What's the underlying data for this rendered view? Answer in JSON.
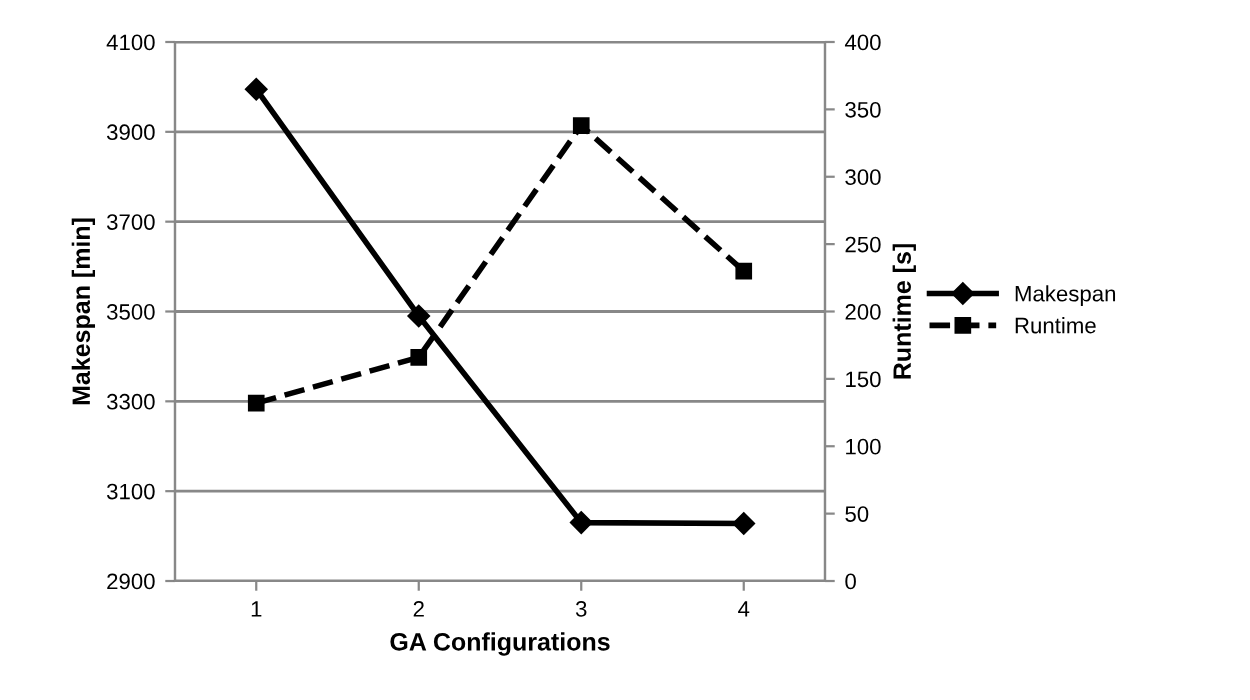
{
  "chart_data": {
    "type": "line",
    "xlabel": "GA Configurations",
    "ylabel": "Makespan [min]",
    "y2label": "Runtime [s]",
    "categories": [
      "1",
      "2",
      "3",
      "4"
    ],
    "series": [
      {
        "name": "Makespan",
        "color": "#000000",
        "values": [
          3995,
          3490,
          3030,
          3028
        ],
        "marker": "diamond",
        "line_style": "solid"
      },
      {
        "name": "Runtime",
        "color": "#000000",
        "values": [
          132,
          166,
          338,
          230
        ],
        "marker": "square",
        "line_style": "dashed",
        "axis": "y2"
      }
    ],
    "ylim": [
      2900,
      4100
    ],
    "yticks": [
      2900,
      3100,
      3300,
      3500,
      3700,
      3900,
      4100
    ],
    "y2lim": [
      0,
      400
    ],
    "y2ticks": [
      0,
      50,
      100,
      150,
      200,
      250,
      300,
      350,
      400
    ],
    "grid": "y",
    "legend": "right"
  }
}
